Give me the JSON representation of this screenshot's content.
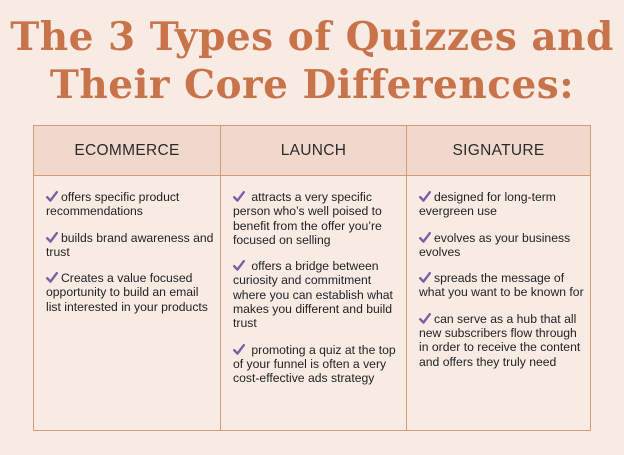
{
  "title": {
    "line1": "The 3 Types of Quizzes and",
    "line2": "Their Core Differences:"
  },
  "columns": [
    {
      "header": "ECOMMERCE",
      "items": [
        "offers specific product recommendations",
        "builds brand awareness and trust",
        "Creates a value focused opportunity to build an email list interested in your products"
      ]
    },
    {
      "header": "LAUNCH",
      "items": [
        " attracts a very specific person who’s well poised to benefit from the offer you’re focused on selling",
        " offers a bridge between curiosity and commitment where you can establish what makes you different and build trust",
        " promoting a quiz at the top of your funnel is often a very cost-effective ads strategy"
      ]
    },
    {
      "header": "SIGNATURE",
      "items": [
        "designed for long-term evergreen use",
        "evolves as your business evolves",
        "spreads the message of what you want to be known for",
        "can serve as a hub that all new subscribers flow through in order to receive the content and offers they truly need"
      ]
    }
  ],
  "icon": "checkmark-icon",
  "colors": {
    "background": "#f8ebe4",
    "title": "#c8734a",
    "header_bg": "#f1d8cd",
    "border": "#d59a7a",
    "check": "#7b5ea7"
  }
}
